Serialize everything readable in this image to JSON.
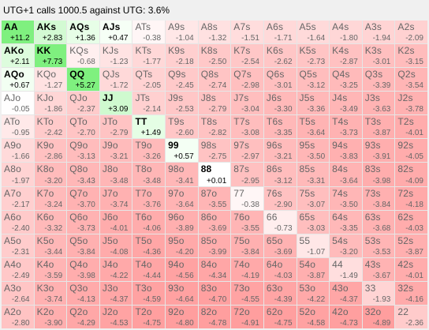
{
  "title": "UTG+1 calls 1000.5 against UTG: 3.6%",
  "colors": {
    "best": "#7ff07f",
    "pos_high": "#b5f5b5",
    "pos_low": "#ecffec",
    "neutral": "#ffffff",
    "neg_low": "#ffe8e8",
    "neg_mid": "#ffc8c8",
    "neg_high": "#ff9e9e"
  },
  "grid": [
    [
      [
        "AA",
        "+11.2"
      ],
      [
        "AKs",
        "+2.83"
      ],
      [
        "AQs",
        "+1.36"
      ],
      [
        "AJs",
        "+0.47"
      ],
      [
        "ATs",
        "-0.38"
      ],
      [
        "A9s",
        "-1.04"
      ],
      [
        "A8s",
        "-1.32"
      ],
      [
        "A7s",
        "-1.51"
      ],
      [
        "A6s",
        "-1.71"
      ],
      [
        "A5s",
        "-1.64"
      ],
      [
        "A4s",
        "-1.80"
      ],
      [
        "A3s",
        "-1.94"
      ],
      [
        "A2s",
        "-2.09"
      ]
    ],
    [
      [
        "AKo",
        "+2.11"
      ],
      [
        "KK",
        "+7.73"
      ],
      [
        "KQs",
        "-0.68"
      ],
      [
        "KJs",
        "-1.23"
      ],
      [
        "KTs",
        "-1.77"
      ],
      [
        "K9s",
        "-2.18"
      ],
      [
        "K8s",
        "-2.50"
      ],
      [
        "K7s",
        "-2.54"
      ],
      [
        "K6s",
        "-2.62"
      ],
      [
        "K5s",
        "-2.73"
      ],
      [
        "K4s",
        "-2.87"
      ],
      [
        "K3s",
        "-3.01"
      ],
      [
        "K2s",
        "-3.15"
      ]
    ],
    [
      [
        "AQo",
        "+0.67"
      ],
      [
        "KQo",
        "-1.27"
      ],
      [
        "QQ",
        "+5.27"
      ],
      [
        "QJs",
        "-1.72"
      ],
      [
        "QTs",
        "-2.05"
      ],
      [
        "Q9s",
        "-2.45"
      ],
      [
        "Q8s",
        "-2.74"
      ],
      [
        "Q7s",
        "-2.98"
      ],
      [
        "Q6s",
        "-3.01"
      ],
      [
        "Q5s",
        "-3.12"
      ],
      [
        "Q4s",
        "-3.25"
      ],
      [
        "Q3s",
        "-3.39"
      ],
      [
        "Q2s",
        "-3.54"
      ]
    ],
    [
      [
        "AJo",
        "-0.05"
      ],
      [
        "KJo",
        "-1.86"
      ],
      [
        "QJo",
        "-2.37"
      ],
      [
        "JJ",
        "+3.09"
      ],
      [
        "JTs",
        "-2.14"
      ],
      [
        "J9s",
        "-2.53"
      ],
      [
        "J8s",
        "-2.79"
      ],
      [
        "J7s",
        "-3.04"
      ],
      [
        "J6s",
        "-3.30"
      ],
      [
        "J5s",
        "-3.36"
      ],
      [
        "J4s",
        "-3.49"
      ],
      [
        "J3s",
        "-3.63"
      ],
      [
        "J2s",
        "-3.78"
      ]
    ],
    [
      [
        "ATo",
        "-0.95"
      ],
      [
        "KTo",
        "-2.42"
      ],
      [
        "QTo",
        "-2.70"
      ],
      [
        "JTo",
        "-2.79"
      ],
      [
        "TT",
        "+1.49"
      ],
      [
        "T9s",
        "-2.60"
      ],
      [
        "T8s",
        "-2.82"
      ],
      [
        "T7s",
        "-3.08"
      ],
      [
        "T6s",
        "-3.35"
      ],
      [
        "T5s",
        "-3.64"
      ],
      [
        "T4s",
        "-3.73"
      ],
      [
        "T3s",
        "-3.87"
      ],
      [
        "T2s",
        "-4.01"
      ]
    ],
    [
      [
        "A9o",
        "-1.66"
      ],
      [
        "K9o",
        "-2.86"
      ],
      [
        "Q9o",
        "-3.13"
      ],
      [
        "J9o",
        "-3.21"
      ],
      [
        "T9o",
        "-3.26"
      ],
      [
        "99",
        "+0.57"
      ],
      [
        "98s",
        "-2.75"
      ],
      [
        "97s",
        "-2.97"
      ],
      [
        "96s",
        "-3.21"
      ],
      [
        "95s",
        "-3.50"
      ],
      [
        "94s",
        "-3.83"
      ],
      [
        "93s",
        "-3.91"
      ],
      [
        "92s",
        "-4.05"
      ]
    ],
    [
      [
        "A8o",
        "-1.97"
      ],
      [
        "K8o",
        "-3.20"
      ],
      [
        "Q8o",
        "-3.43"
      ],
      [
        "J8o",
        "-3.48"
      ],
      [
        "T8o",
        "-3.48"
      ],
      [
        "98o",
        "-3.41"
      ],
      [
        "88",
        "+0.01"
      ],
      [
        "87s",
        "-2.95"
      ],
      [
        "86s",
        "-3.12"
      ],
      [
        "85s",
        "-3.31"
      ],
      [
        "84s",
        "-3.64"
      ],
      [
        "83s",
        "-3.98"
      ],
      [
        "82s",
        "-4.09"
      ]
    ],
    [
      [
        "A7o",
        "-2.17"
      ],
      [
        "K7o",
        "-3.24"
      ],
      [
        "Q7o",
        "-3.70"
      ],
      [
        "J7o",
        "-3.74"
      ],
      [
        "T7o",
        "-3.76"
      ],
      [
        "97o",
        "-3.64"
      ],
      [
        "87o",
        "-3.55"
      ],
      [
        "77",
        "-0.38"
      ],
      [
        "76s",
        "-2.90"
      ],
      [
        "75s",
        "-3.07"
      ],
      [
        "74s",
        "-3.50"
      ],
      [
        "73s",
        "-3.84"
      ],
      [
        "72s",
        "-4.18"
      ]
    ],
    [
      [
        "A6o",
        "-2.40"
      ],
      [
        "K6o",
        "-3.32"
      ],
      [
        "Q6o",
        "-3.73"
      ],
      [
        "J6o",
        "-4.01"
      ],
      [
        "T6o",
        "-4.06"
      ],
      [
        "96o",
        "-3.89"
      ],
      [
        "86o",
        "-3.69"
      ],
      [
        "76o",
        "-3.55"
      ],
      [
        "66",
        "-0.73"
      ],
      [
        "65s",
        "-3.03"
      ],
      [
        "64s",
        "-3.35"
      ],
      [
        "63s",
        "-3.68"
      ],
      [
        "62s",
        "-4.03"
      ]
    ],
    [
      [
        "A5o",
        "-2.31"
      ],
      [
        "K5o",
        "-3.44"
      ],
      [
        "Q5o",
        "-3.84"
      ],
      [
        "J5o",
        "-4.08"
      ],
      [
        "T5o",
        "-4.36"
      ],
      [
        "95o",
        "-4.20"
      ],
      [
        "85o",
        "-3.99"
      ],
      [
        "75o",
        "-3.84"
      ],
      [
        "65o",
        "-3.69"
      ],
      [
        "55",
        "-1.07"
      ],
      [
        "54s",
        "-3.20"
      ],
      [
        "53s",
        "-3.53"
      ],
      [
        "52s",
        "-3.87"
      ]
    ],
    [
      [
        "A4o",
        "-2.49"
      ],
      [
        "K4o",
        "-3.59"
      ],
      [
        "Q4o",
        "-3.98"
      ],
      [
        "J4o",
        "-4.22"
      ],
      [
        "T4o",
        "-4.44"
      ],
      [
        "94o",
        "-4.56"
      ],
      [
        "84o",
        "-4.34"
      ],
      [
        "74o",
        "-4.19"
      ],
      [
        "64o",
        "-4.03"
      ],
      [
        "54o",
        "-3.87"
      ],
      [
        "44",
        "-1.49"
      ],
      [
        "43s",
        "-3.67"
      ],
      [
        "42s",
        "-4.01"
      ]
    ],
    [
      [
        "A3o",
        "-2.64"
      ],
      [
        "K3o",
        "-3.74"
      ],
      [
        "Q3o",
        "-4.13"
      ],
      [
        "J3o",
        "-4.37"
      ],
      [
        "T3o",
        "-4.59"
      ],
      [
        "93o",
        "-4.64"
      ],
      [
        "83o",
        "-4.70"
      ],
      [
        "73o",
        "-4.55"
      ],
      [
        "63o",
        "-4.39"
      ],
      [
        "53o",
        "-4.22"
      ],
      [
        "43o",
        "-4.37"
      ],
      [
        "33",
        "-1.93"
      ],
      [
        "32s",
        "-4.16"
      ]
    ],
    [
      [
        "A2o",
        "-2.80"
      ],
      [
        "K2o",
        "-3.90"
      ],
      [
        "Q2o",
        "-4.29"
      ],
      [
        "J2o",
        "-4.53"
      ],
      [
        "T2o",
        "-4.75"
      ],
      [
        "92o",
        "-4.80"
      ],
      [
        "82o",
        "-4.78"
      ],
      [
        "72o",
        "-4.91"
      ],
      [
        "62o",
        "-4.75"
      ],
      [
        "52o",
        "-4.58"
      ],
      [
        "42o",
        "-4.73"
      ],
      [
        "32o",
        "-4.89"
      ],
      [
        "22",
        "-2.36"
      ]
    ]
  ]
}
